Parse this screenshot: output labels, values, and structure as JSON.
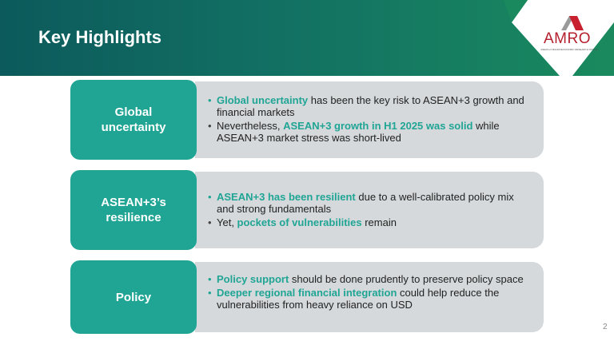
{
  "slide": {
    "title": "Key Highlights",
    "page_number": "2"
  },
  "logo": {
    "word": "AMRO",
    "subtitle": "ASEAN+3 MACROECONOMIC RESEARCH OFFICE"
  },
  "colors": {
    "accent": "#20a595",
    "header_dark": "#0c5a5c",
    "header_green": "#1a8a5e",
    "box_gray": "#d5d9dc",
    "logo_red": "#b5202e"
  },
  "rows": [
    {
      "tag": "Global uncertainty",
      "bullets": [
        {
          "pre": "",
          "highlight": "Global uncertainty",
          "post": " has been the key risk to ASEAN+3 growth and financial markets"
        },
        {
          "pre": "Nevertheless,  ",
          "highlight": "ASEAN+3 growth in H1 2025 was solid",
          "post": " while ASEAN+3 market stress was short-lived"
        }
      ]
    },
    {
      "tag": "ASEAN+3’s resilience",
      "bullets": [
        {
          "pre": "",
          "highlight": "ASEAN+3 has been resilient",
          "post": " due to a well-calibrated policy mix and strong fundamentals"
        },
        {
          "pre": "Yet, ",
          "highlight": "pockets of vulnerabilities",
          "post": " remain"
        }
      ]
    },
    {
      "tag": "Policy",
      "bullets": [
        {
          "pre": "",
          "highlight": "Policy support",
          "post": " should be done prudently to preserve policy space"
        },
        {
          "pre": "",
          "highlight": "Deeper regional financial integration",
          "post": " could help reduce the vulnerabilities from heavy reliance on USD"
        }
      ]
    }
  ]
}
